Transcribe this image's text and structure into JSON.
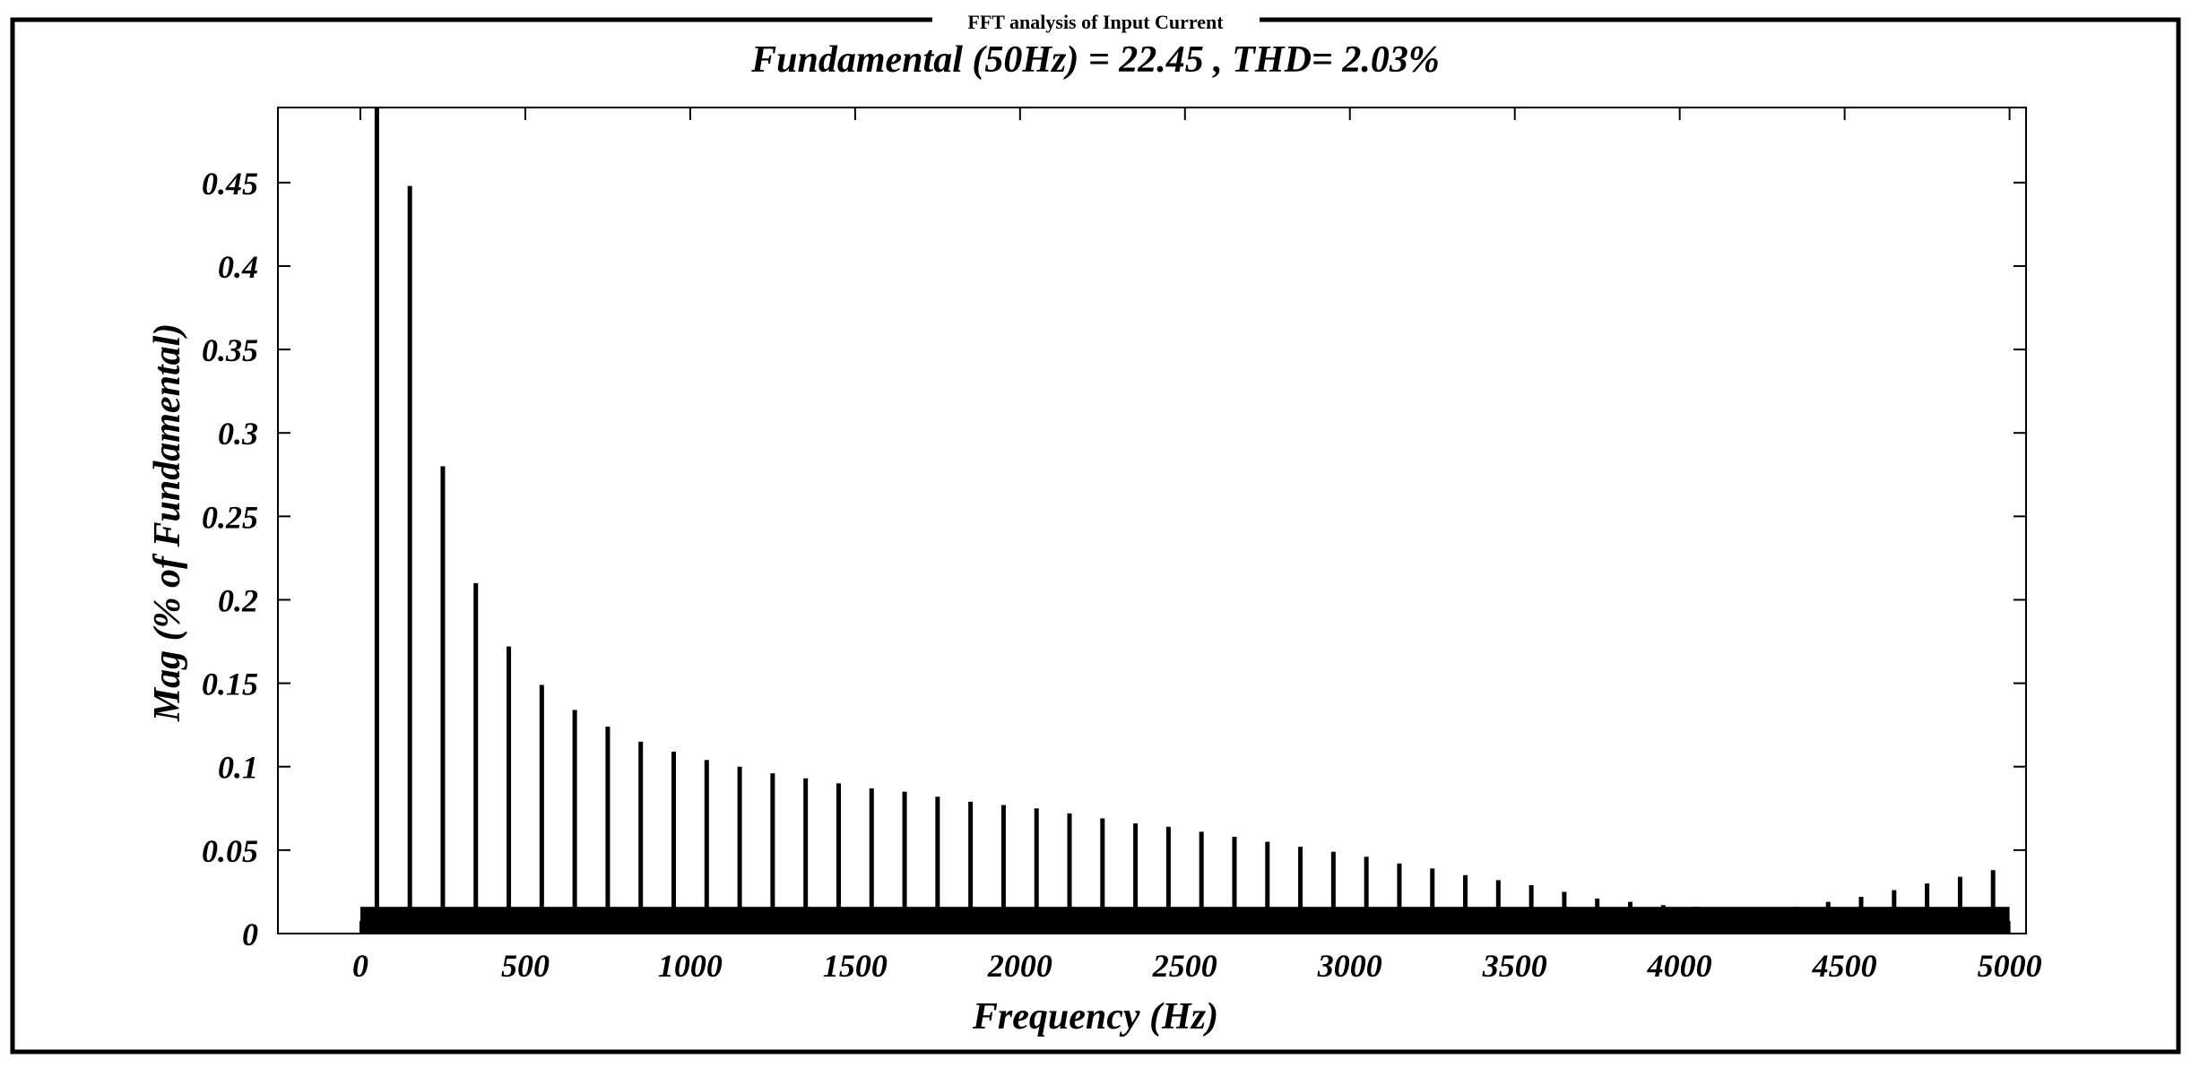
{
  "window_caption": "FFT analysis of Input Current",
  "chart_data": {
    "type": "bar",
    "title": "Fundamental (50Hz) = 22.45 , THD= 2.03%",
    "xlabel": "Frequency (Hz)",
    "ylabel": "Mag (% of Fundamental)",
    "xlim": [
      -250,
      5050
    ],
    "ylim": [
      0,
      0.495
    ],
    "xticks": [
      0,
      500,
      1000,
      1500,
      2000,
      2500,
      3000,
      3500,
      4000,
      4500,
      5000
    ],
    "xtick_labels": [
      "0",
      "500",
      "1000",
      "1500",
      "2000",
      "2500",
      "3000",
      "3500",
      "4000",
      "4500",
      "5000"
    ],
    "yticks": [
      0,
      0.05,
      0.1,
      0.15,
      0.2,
      0.25,
      0.3,
      0.35,
      0.4,
      0.45
    ],
    "ytick_labels": [
      "0",
      "0.05",
      "0.1",
      "0.15",
      "0.2",
      "0.25",
      "0.3",
      "0.35",
      "0.4",
      "0.45"
    ],
    "grid": false,
    "legend": "none",
    "noise_floor": 0.016,
    "noise_range": [
      0,
      5000
    ],
    "series": [
      {
        "frequencies": [
          50,
          150,
          250,
          350,
          450,
          550,
          650,
          750,
          850,
          950,
          1050,
          1150,
          1250,
          1350,
          1450,
          1550,
          1650,
          1750,
          1850,
          1950,
          2050,
          2150,
          2250,
          2350,
          2450,
          2550,
          2650,
          2750,
          2850,
          2950,
          3050,
          3150,
          3250,
          3350,
          3450,
          3550,
          3650,
          3750,
          3850,
          3950,
          4050,
          4150,
          4250,
          4350,
          4450,
          4550,
          4650,
          4750,
          4850,
          4950
        ],
        "values": [
          0.5,
          0.448,
          0.28,
          0.21,
          0.172,
          0.149,
          0.134,
          0.124,
          0.115,
          0.109,
          0.104,
          0.1,
          0.096,
          0.093,
          0.09,
          0.087,
          0.085,
          0.082,
          0.079,
          0.077,
          0.075,
          0.072,
          0.069,
          0.066,
          0.064,
          0.061,
          0.058,
          0.055,
          0.052,
          0.049,
          0.046,
          0.042,
          0.039,
          0.035,
          0.032,
          0.029,
          0.025,
          0.021,
          0.019,
          0.017,
          0.016,
          0.015,
          0.015,
          0.016,
          0.019,
          0.022,
          0.026,
          0.03,
          0.034,
          0.038
        ]
      }
    ]
  },
  "colors": {
    "bars": "#000000",
    "axes": "#000000",
    "background": "#ffffff"
  }
}
